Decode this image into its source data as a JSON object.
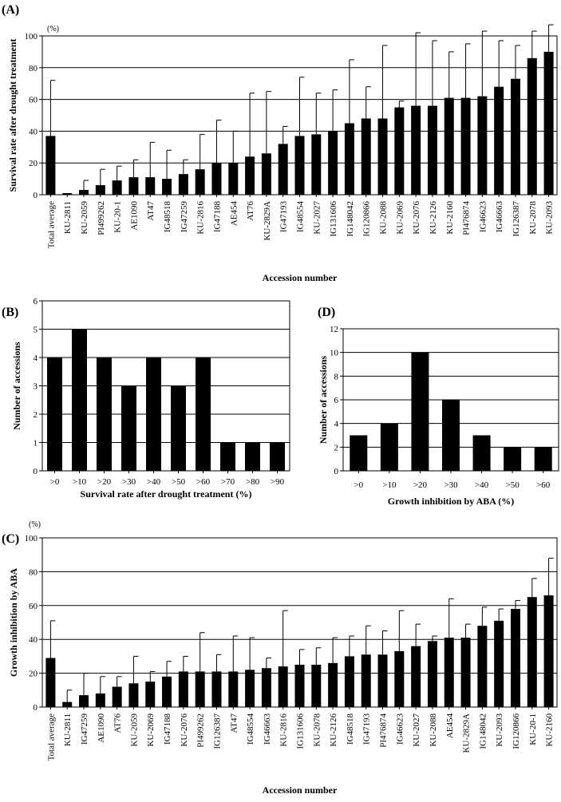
{
  "chart_data": [
    {
      "id": "A",
      "panel_label": "(A)",
      "type": "bar",
      "title": "",
      "xlabel": "Accession number",
      "ylabel": "Survival rate after drought treatment",
      "unit_label": "(%)",
      "ylim": [
        0,
        100
      ],
      "yticks": [
        0,
        20,
        40,
        60,
        80,
        100
      ],
      "grid": true,
      "categories": [
        "Total average",
        "KU-2811",
        "KU-2059",
        "PI499262",
        "KU-20-1",
        "AE1090",
        "AT47",
        "IG48518",
        "IG47259",
        "KU-2816",
        "IG47188",
        "AE454",
        "AT76",
        "KU-2829A",
        "IG47193",
        "IG48554",
        "KU-2027",
        "IG131606",
        "IG148042",
        "IG120866",
        "KU-2088",
        "KU-2069",
        "KU-2076",
        "KU-2126",
        "KU-2160",
        "PI476874",
        "IG46623",
        "IG46663",
        "IG126387",
        "KU-2078",
        "KU-2093"
      ],
      "values": [
        37,
        1,
        3,
        6,
        9,
        11,
        11,
        10,
        13,
        16,
        20,
        20,
        24,
        26,
        32,
        37,
        38,
        40,
        45,
        48,
        48,
        55,
        56,
        56,
        61,
        61,
        62,
        68,
        73,
        86,
        90
      ],
      "errors": [
        35,
        0,
        6,
        10,
        9,
        11,
        22,
        18,
        9,
        22,
        27,
        20,
        40,
        39,
        11,
        37,
        26,
        26,
        40,
        20,
        46,
        4,
        46,
        41,
        29,
        34,
        41,
        29,
        21,
        17,
        17
      ]
    },
    {
      "id": "B",
      "panel_label": "(B)",
      "type": "bar",
      "title": "",
      "xlabel": "Survival rate after drought treatment (%)",
      "ylabel": "Number of accessions",
      "ylim": [
        0,
        6
      ],
      "yticks": [
        0,
        1,
        2,
        3,
        4,
        5,
        6
      ],
      "grid": true,
      "categories": [
        ">0",
        ">10",
        ">20",
        ">30",
        ">40",
        ">50",
        ">60",
        ">70",
        ">80",
        ">90"
      ],
      "values": [
        4,
        5,
        4,
        3,
        4,
        3,
        4,
        1,
        1,
        1
      ]
    },
    {
      "id": "D",
      "panel_label": "(D)",
      "type": "bar",
      "title": "",
      "xlabel": "Growth inhibition by ABA (%)",
      "ylabel": "Number of accessions",
      "ylim": [
        0,
        12
      ],
      "yticks": [
        0,
        2,
        4,
        6,
        8,
        10,
        12
      ],
      "grid": true,
      "categories": [
        ">0",
        ">10",
        ">20",
        ">30",
        ">40",
        ">50",
        ">60"
      ],
      "values": [
        3,
        4,
        10,
        6,
        3,
        2,
        2
      ]
    },
    {
      "id": "C",
      "panel_label": "(C)",
      "type": "bar",
      "title": "",
      "xlabel": "Accession number",
      "ylabel": "Growth inhibition by ABA",
      "unit_label": "(%)",
      "ylim": [
        0,
        100
      ],
      "yticks": [
        0,
        20,
        40,
        60,
        80,
        100
      ],
      "grid": true,
      "categories": [
        "Total average",
        "KU-2811",
        "IG47259",
        "AE1090",
        "AT76",
        "KU-2059",
        "KU-2069",
        "IG47188",
        "KU-2076",
        "PI499262",
        "IG126387",
        "AT47",
        "IG48554",
        "IG46663",
        "KU-2816",
        "IG131606",
        "KU-2078",
        "KU-2126",
        "IG48518",
        "IG47193",
        "PI476874",
        "IG46623",
        "KU-2027",
        "KU-2088",
        "AE454",
        "KU-2829A",
        "IG148042",
        "KU-2093",
        "IG120866",
        "KU-20-1",
        "KU-2160"
      ],
      "values": [
        29,
        3,
        7,
        8,
        12,
        14,
        15,
        18,
        21,
        21,
        21,
        21,
        22,
        23,
        24,
        25,
        25,
        26,
        30,
        31,
        31,
        33,
        36,
        39,
        41,
        41,
        48,
        51,
        58,
        65,
        66
      ],
      "errors": [
        22,
        7,
        13,
        10,
        6,
        16,
        6,
        9,
        9,
        23,
        10,
        21,
        19,
        6,
        33,
        9,
        10,
        15,
        12,
        17,
        14,
        24,
        13,
        3,
        23,
        8,
        11,
        7,
        5,
        11,
        22
      ]
    }
  ]
}
